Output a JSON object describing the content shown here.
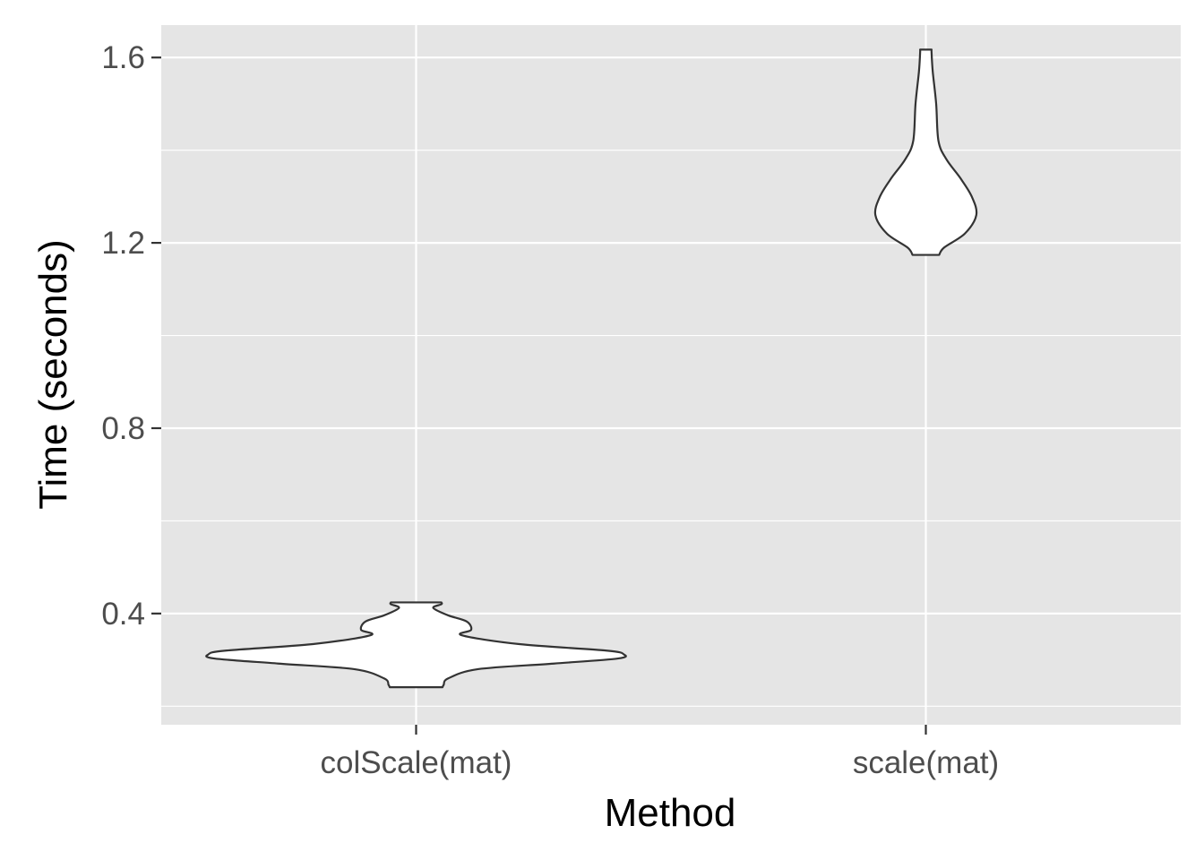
{
  "chart_data": {
    "type": "violin",
    "xlabel": "Method",
    "ylabel": "Time (seconds)",
    "ylim": [
      0.16,
      1.67
    ],
    "yticks": [
      0.4,
      0.8,
      1.2,
      1.6
    ],
    "yticks_minor": [
      0.2,
      0.6,
      1.0,
      1.4
    ],
    "categories": [
      "colScale(mat)",
      "scale(mat)"
    ],
    "grid": true,
    "colors": {
      "panel_bg": "#e5e5e5",
      "grid": "#ffffff",
      "violin_fill": "#ffffff",
      "violin_stroke": "#333333",
      "tick_text": "#4d4d4d",
      "title_text": "#000000"
    },
    "series": [
      {
        "category": "colScale(mat)",
        "min": 0.241,
        "max": 0.424,
        "density": [
          {
            "y": 0.241,
            "w": 0.115
          },
          {
            "y": 0.246,
            "w": 0.12
          },
          {
            "y": 0.26,
            "w": 0.14
          },
          {
            "y": 0.28,
            "w": 0.27
          },
          {
            "y": 0.292,
            "w": 0.6
          },
          {
            "y": 0.303,
            "w": 0.88
          },
          {
            "y": 0.312,
            "w": 0.905
          },
          {
            "y": 0.32,
            "w": 0.83
          },
          {
            "y": 0.334,
            "w": 0.45
          },
          {
            "y": 0.353,
            "w": 0.2
          },
          {
            "y": 0.365,
            "w": 0.24
          },
          {
            "y": 0.383,
            "w": 0.22
          },
          {
            "y": 0.396,
            "w": 0.14
          },
          {
            "y": 0.412,
            "w": 0.075
          },
          {
            "y": 0.42,
            "w": 0.11
          },
          {
            "y": 0.424,
            "w": 0.11
          }
        ]
      },
      {
        "category": "scale(mat)",
        "min": 1.174,
        "max": 1.617,
        "density": [
          {
            "y": 1.174,
            "w": 0.058
          },
          {
            "y": 1.19,
            "w": 0.08
          },
          {
            "y": 1.22,
            "w": 0.17
          },
          {
            "y": 1.26,
            "w": 0.22
          },
          {
            "y": 1.3,
            "w": 0.2
          },
          {
            "y": 1.34,
            "w": 0.15
          },
          {
            "y": 1.38,
            "w": 0.09
          },
          {
            "y": 1.42,
            "w": 0.055
          },
          {
            "y": 1.5,
            "w": 0.045
          },
          {
            "y": 1.57,
            "w": 0.03
          },
          {
            "y": 1.61,
            "w": 0.025
          },
          {
            "y": 1.617,
            "w": 0.025
          }
        ]
      }
    ]
  }
}
